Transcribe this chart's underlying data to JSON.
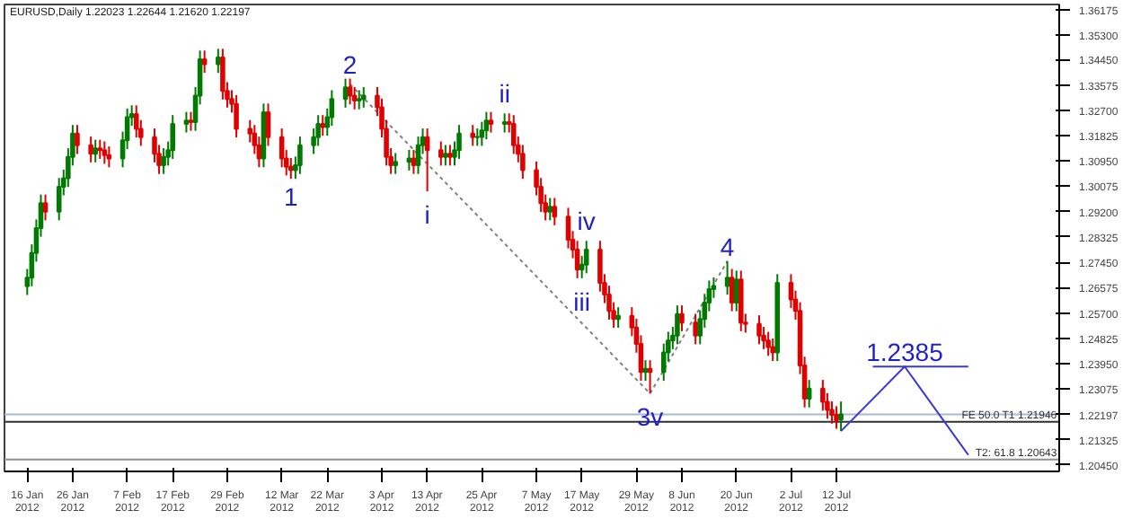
{
  "chart_data": {
    "type": "candlestick",
    "title": "EURUSD,Daily  1.22023 1.22644 1.21620 1.22197",
    "x": [
      "2012-01-16",
      "2012-01-17",
      "2012-01-18",
      "2012-01-19",
      "2012-01-20",
      "2012-01-23",
      "2012-01-24",
      "2012-01-25",
      "2012-01-26",
      "2012-01-27",
      "2012-01-30",
      "2012-01-31",
      "2012-02-01",
      "2012-02-02",
      "2012-02-03",
      "2012-02-06",
      "2012-02-07",
      "2012-02-08",
      "2012-02-09",
      "2012-02-10",
      "2012-02-13",
      "2012-02-14",
      "2012-02-15",
      "2012-02-16",
      "2012-02-17",
      "2012-02-20",
      "2012-02-21",
      "2012-02-22",
      "2012-02-23",
      "2012-02-24",
      "2012-02-27",
      "2012-02-28",
      "2012-02-29",
      "2012-03-01",
      "2012-03-02",
      "2012-03-05",
      "2012-03-06",
      "2012-03-07",
      "2012-03-08",
      "2012-03-09",
      "2012-03-12",
      "2012-03-13",
      "2012-03-14",
      "2012-03-15",
      "2012-03-16",
      "2012-03-19",
      "2012-03-20",
      "2012-03-21",
      "2012-03-22",
      "2012-03-23",
      "2012-03-26",
      "2012-03-27",
      "2012-03-28",
      "2012-03-29",
      "2012-03-30",
      "2012-04-02",
      "2012-04-03",
      "2012-04-04",
      "2012-04-05",
      "2012-04-06",
      "2012-04-09",
      "2012-04-10",
      "2012-04-11",
      "2012-04-12",
      "2012-04-13",
      "2012-04-16",
      "2012-04-17",
      "2012-04-18",
      "2012-04-19",
      "2012-04-20",
      "2012-04-23",
      "2012-04-24",
      "2012-04-25",
      "2012-04-26",
      "2012-04-27",
      "2012-04-30",
      "2012-05-01",
      "2012-05-02",
      "2012-05-03",
      "2012-05-04",
      "2012-05-07",
      "2012-05-08",
      "2012-05-09",
      "2012-05-10",
      "2012-05-11",
      "2012-05-14",
      "2012-05-15",
      "2012-05-16",
      "2012-05-17",
      "2012-05-18",
      "2012-05-21",
      "2012-05-22",
      "2012-05-23",
      "2012-05-24",
      "2012-05-25",
      "2012-05-28",
      "2012-05-29",
      "2012-05-30",
      "2012-05-31",
      "2012-06-01",
      "2012-06-04",
      "2012-06-05",
      "2012-06-06",
      "2012-06-07",
      "2012-06-08",
      "2012-06-11",
      "2012-06-12",
      "2012-06-13",
      "2012-06-14",
      "2012-06-15",
      "2012-06-18",
      "2012-06-19",
      "2012-06-20",
      "2012-06-21",
      "2012-06-22",
      "2012-06-25",
      "2012-06-26",
      "2012-06-27",
      "2012-06-28",
      "2012-06-29",
      "2012-07-02",
      "2012-07-03",
      "2012-07-04",
      "2012-07-05",
      "2012-07-06",
      "2012-07-09",
      "2012-07-10",
      "2012-07-11",
      "2012-07-12",
      "2012-07-13"
    ],
    "ohlc": [
      [
        1.2662,
        1.2722,
        1.2632,
        1.2692
      ],
      [
        1.2692,
        1.2807,
        1.2662,
        1.2777
      ],
      [
        1.2777,
        1.2893,
        1.2747,
        1.2863
      ],
      [
        1.2863,
        1.2979,
        1.2833,
        1.2949
      ],
      [
        1.2949,
        1.2979,
        1.289,
        1.292
      ],
      [
        1.292,
        1.3036,
        1.289,
        1.3006
      ],
      [
        1.3006,
        1.3065,
        1.2976,
        1.3035
      ],
      [
        1.3035,
        1.3139,
        1.3005,
        1.3109
      ],
      [
        1.3109,
        1.3219,
        1.3079,
        1.3189
      ],
      [
        1.3189,
        1.3219,
        1.3119,
        1.3149
      ],
      [
        1.3149,
        1.3179,
        1.309,
        1.312
      ],
      [
        1.312,
        1.3168,
        1.309,
        1.3138
      ],
      [
        1.3138,
        1.3168,
        1.3102,
        1.3132
      ],
      [
        1.3132,
        1.3162,
        1.3085,
        1.3115
      ],
      [
        1.3115,
        1.3145,
        1.3073,
        1.3103
      ],
      [
        1.3103,
        1.3196,
        1.3073,
        1.3166
      ],
      [
        1.3166,
        1.3276,
        1.3136,
        1.3246
      ],
      [
        1.3246,
        1.3287,
        1.3216,
        1.3257
      ],
      [
        1.3257,
        1.3287,
        1.3176,
        1.3206
      ],
      [
        1.3206,
        1.3236,
        1.3147,
        1.3177
      ],
      [
        1.3177,
        1.3207,
        1.309,
        1.312
      ],
      [
        1.312,
        1.315,
        1.305,
        1.308
      ],
      [
        1.308,
        1.3139,
        1.305,
        1.3109
      ],
      [
        1.3109,
        1.3162,
        1.3079,
        1.3132
      ],
      [
        1.3132,
        1.3253,
        1.3102,
        1.3223
      ],
      [
        1.3223,
        1.3264,
        1.3193,
        1.3234
      ],
      [
        1.3234,
        1.3264,
        1.3199,
        1.3229
      ],
      [
        1.3229,
        1.335,
        1.3199,
        1.332
      ],
      [
        1.332,
        1.3476,
        1.329,
        1.3446
      ],
      [
        1.3446,
        1.3476,
        1.3399,
        1.3429
      ],
      [
        1.3429,
        1.3482,
        1.3399,
        1.3452
      ],
      [
        1.3452,
        1.3482,
        1.3307,
        1.3337
      ],
      [
        1.3337,
        1.3367,
        1.3279,
        1.3309
      ],
      [
        1.3309,
        1.3339,
        1.3262,
        1.3292
      ],
      [
        1.3292,
        1.3322,
        1.3176,
        1.3206
      ],
      [
        1.3206,
        1.3236,
        1.3159,
        1.3189
      ],
      [
        1.3189,
        1.3219,
        1.3119,
        1.3149
      ],
      [
        1.3149,
        1.3179,
        1.3073,
        1.3103
      ],
      [
        1.3103,
        1.3293,
        1.3073,
        1.3263
      ],
      [
        1.3263,
        1.3293,
        1.3147,
        1.3177
      ],
      [
        1.3177,
        1.3207,
        1.3073,
        1.3103
      ],
      [
        1.3103,
        1.3133,
        1.3045,
        1.3075
      ],
      [
        1.3075,
        1.3105,
        1.3033,
        1.3063
      ],
      [
        1.3063,
        1.311,
        1.3033,
        1.308
      ],
      [
        1.308,
        1.3179,
        1.305,
        1.3149
      ],
      [
        1.3149,
        1.3207,
        1.3119,
        1.3177
      ],
      [
        1.3177,
        1.3253,
        1.3147,
        1.3223
      ],
      [
        1.3223,
        1.3253,
        1.3182,
        1.3212
      ],
      [
        1.3212,
        1.3276,
        1.3182,
        1.3246
      ],
      [
        1.3246,
        1.3339,
        1.3216,
        1.3309
      ],
      [
        1.3309,
        1.3379,
        1.3279,
        1.3349
      ],
      [
        1.3349,
        1.3379,
        1.329,
        1.332
      ],
      [
        1.332,
        1.335,
        1.3273,
        1.3303
      ],
      [
        1.3303,
        1.3339,
        1.3273,
        1.3309
      ],
      [
        1.3309,
        1.335,
        1.3279,
        1.332
      ],
      [
        1.332,
        1.335,
        1.325,
        1.328
      ],
      [
        1.328,
        1.331,
        1.3176,
        1.3206
      ],
      [
        1.3206,
        1.3236,
        1.3079,
        1.3109
      ],
      [
        1.3109,
        1.3139,
        1.305,
        1.308
      ],
      [
        1.308,
        1.3122,
        1.305,
        1.3092
      ],
      [
        1.3092,
        1.3133,
        1.3062,
        1.3103
      ],
      [
        1.3103,
        1.3133,
        1.305,
        1.308
      ],
      [
        1.308,
        1.3179,
        1.305,
        1.3149
      ],
      [
        1.3149,
        1.3207,
        1.3119,
        1.3177
      ],
      [
        1.3177,
        1.3207,
        1.299,
        1.3132
      ],
      [
        1.3132,
        1.3162,
        1.3079,
        1.3109
      ],
      [
        1.3109,
        1.315,
        1.3079,
        1.312
      ],
      [
        1.312,
        1.315,
        1.3079,
        1.3109
      ],
      [
        1.3109,
        1.3162,
        1.3079,
        1.3132
      ],
      [
        1.3132,
        1.3219,
        1.3102,
        1.3189
      ],
      [
        1.3189,
        1.3219,
        1.3147,
        1.3177
      ],
      [
        1.3177,
        1.3207,
        1.3147,
        1.3178
      ],
      [
        1.3178,
        1.323,
        1.3147,
        1.32
      ],
      [
        1.32,
        1.3264,
        1.317,
        1.3234
      ],
      [
        1.3234,
        1.3264,
        1.3193,
        1.3223
      ],
      [
        1.3223,
        1.3259,
        1.3193,
        1.3229
      ],
      [
        1.3229,
        1.3259,
        1.3193,
        1.3223
      ],
      [
        1.3223,
        1.3253,
        1.3119,
        1.3149
      ],
      [
        1.3149,
        1.3179,
        1.309,
        1.312
      ],
      [
        1.312,
        1.315,
        1.3033,
        1.3063
      ],
      [
        1.3063,
        1.3093,
        1.2976,
        1.3006
      ],
      [
        1.3006,
        1.3036,
        1.2919,
        1.2949
      ],
      [
        1.2949,
        1.2979,
        1.289,
        1.292
      ],
      [
        1.292,
        1.2967,
        1.289,
        1.2937
      ],
      [
        1.2937,
        1.2967,
        1.2873,
        1.2903
      ],
      [
        1.2903,
        1.2933,
        1.2793,
        1.2823
      ],
      [
        1.2823,
        1.2853,
        1.2759,
        1.2789
      ],
      [
        1.2789,
        1.2819,
        1.269,
        1.272
      ],
      [
        1.272,
        1.2767,
        1.269,
        1.2737
      ],
      [
        1.2737,
        1.2819,
        1.2707,
        1.2789
      ],
      [
        1.2789,
        1.2819,
        1.2644,
        1.2674
      ],
      [
        1.2674,
        1.2704,
        1.2604,
        1.2634
      ],
      [
        1.2634,
        1.2664,
        1.2547,
        1.2577
      ],
      [
        1.2577,
        1.2607,
        1.2519,
        1.2549
      ],
      [
        1.2549,
        1.259,
        1.2519,
        1.256
      ],
      [
        1.256,
        1.259,
        1.249,
        1.252
      ],
      [
        1.252,
        1.255,
        1.2433,
        1.2463
      ],
      [
        1.2463,
        1.2493,
        1.2336,
        1.2366
      ],
      [
        1.2366,
        1.2407,
        1.2336,
        1.2377
      ],
      [
        1.2377,
        1.2407,
        1.2292,
        1.2366
      ],
      [
        1.2366,
        1.2464,
        1.2336,
        1.2434
      ],
      [
        1.2434,
        1.2505,
        1.2404,
        1.2475
      ],
      [
        1.2475,
        1.2522,
        1.2445,
        1.2492
      ],
      [
        1.2492,
        1.2596,
        1.2462,
        1.2566
      ],
      [
        1.2566,
        1.2596,
        1.2507,
        1.2537
      ],
      [
        1.2537,
        1.2567,
        1.2462,
        1.2492
      ],
      [
        1.2492,
        1.2579,
        1.2462,
        1.2549
      ],
      [
        1.2549,
        1.2636,
        1.2519,
        1.2606
      ],
      [
        1.2606,
        1.2682,
        1.2576,
        1.2652
      ],
      [
        1.2652,
        1.2693,
        1.2622,
        1.2663
      ],
      [
        1.2663,
        1.2749,
        1.2633,
        1.2692
      ],
      [
        1.2692,
        1.2722,
        1.2576,
        1.2606
      ],
      [
        1.2606,
        1.2716,
        1.2576,
        1.2686
      ],
      [
        1.2686,
        1.2716,
        1.2507,
        1.2537
      ],
      [
        1.2537,
        1.2567,
        1.2502,
        1.2532
      ],
      [
        1.2532,
        1.2562,
        1.2462,
        1.2492
      ],
      [
        1.2492,
        1.2522,
        1.2445,
        1.2475
      ],
      [
        1.2475,
        1.2505,
        1.2422,
        1.2452
      ],
      [
        1.2452,
        1.2482,
        1.2404,
        1.2434
      ],
      [
        1.2434,
        1.2704,
        1.2404,
        1.2674
      ],
      [
        1.2674,
        1.2704,
        1.2587,
        1.2617
      ],
      [
        1.2617,
        1.2647,
        1.2547,
        1.2577
      ],
      [
        1.2577,
        1.2607,
        1.2359,
        1.2389
      ],
      [
        1.2389,
        1.2419,
        1.2244,
        1.2274
      ],
      [
        1.2274,
        1.2339,
        1.2244,
        1.2309
      ],
      [
        1.2309,
        1.2339,
        1.2233,
        1.2263
      ],
      [
        1.2263,
        1.2293,
        1.2205,
        1.2235
      ],
      [
        1.2235,
        1.2265,
        1.2188,
        1.2218
      ],
      [
        1.2218,
        1.2248,
        1.217,
        1.22
      ],
      [
        1.22023,
        1.22644,
        1.2162,
        1.22197
      ]
    ],
    "colors": [
      "#007a00",
      "#007a00",
      "#007a00",
      "#007a00",
      "#e00000",
      "#007a00",
      "#007a00",
      "#007a00",
      "#007a00",
      "#e00000",
      "#e00000",
      "#007a00",
      "#e00000",
      "#e00000",
      "#e00000",
      "#007a00",
      "#007a00",
      "#007a00",
      "#e00000",
      "#e00000",
      "#e00000",
      "#e00000",
      "#007a00",
      "#007a00",
      "#007a00",
      "#007a00",
      "#e00000",
      "#007a00",
      "#007a00",
      "#e00000",
      "#007a00",
      "#e00000",
      "#e00000",
      "#e00000",
      "#e00000",
      "#e00000",
      "#e00000",
      "#e00000",
      "#007a00",
      "#e00000",
      "#e00000",
      "#e00000",
      "#e00000",
      "#007a00",
      "#007a00",
      "#007a00",
      "#007a00",
      "#e00000",
      "#007a00",
      "#007a00",
      "#007a00",
      "#e00000",
      "#e00000",
      "#007a00",
      "#007a00",
      "#e00000",
      "#e00000",
      "#e00000",
      "#e00000",
      "#007a00",
      "#007a00",
      "#e00000",
      "#007a00",
      "#007a00",
      "#e00000",
      "#e00000",
      "#007a00",
      "#e00000",
      "#007a00",
      "#007a00",
      "#e00000",
      "#007a00",
      "#007a00",
      "#007a00",
      "#e00000",
      "#007a00",
      "#e00000",
      "#e00000",
      "#e00000",
      "#e00000",
      "#e00000",
      "#e00000",
      "#e00000",
      "#007a00",
      "#e00000",
      "#e00000",
      "#e00000",
      "#e00000",
      "#007a00",
      "#007a00",
      "#e00000",
      "#e00000",
      "#e00000",
      "#e00000",
      "#007a00",
      "#e00000",
      "#e00000",
      "#e00000",
      "#007a00",
      "#e00000",
      "#007a00",
      "#007a00",
      "#007a00",
      "#007a00",
      "#e00000",
      "#e00000",
      "#007a00",
      "#007a00",
      "#007a00",
      "#007a00",
      "#007a00",
      "#e00000",
      "#007a00",
      "#e00000",
      "#e00000",
      "#e00000",
      "#e00000",
      "#e00000",
      "#e00000",
      "#007a00",
      "#e00000",
      "#e00000",
      "#e00000",
      "#e00000",
      "#007a00",
      "#e00000",
      "#e00000",
      "#e00000",
      "#e00000",
      "#007a00"
    ],
    "series": [
      {
        "type": "line",
        "color": "#808080",
        "line_style": "dotted",
        "x": [
          "2012-03-27",
          "2012-06-01",
          "2012-06-18"
        ],
        "values": [
          1.336,
          1.2292,
          1.2749
        ]
      },
      {
        "type": "line",
        "color": "#3a3ad6",
        "line_style": "solid",
        "x": [
          "2012-07-13",
          "2012-07-27",
          "2012-08-10"
        ],
        "values": [
          1.2162,
          1.2385,
          1.208
        ]
      },
      {
        "type": "line",
        "color": "#3a3ad6",
        "line_style": "solid",
        "x": [
          "2012-07-20",
          "2012-08-10"
        ],
        "values": [
          1.2385,
          1.2385
        ]
      }
    ],
    "annotations": [
      {
        "text": "1",
        "x": "2012-03-14",
        "y": 1.3033
      },
      {
        "text": "2",
        "x": "2012-03-27",
        "y": 1.3379
      },
      {
        "text": "i",
        "x": "2012-04-13",
        "y": 1.299
      },
      {
        "text": "ii",
        "x": "2012-04-30",
        "y": 1.3259
      },
      {
        "text": "iii",
        "x": "2012-05-17",
        "y": 1.269
      },
      {
        "text": "iv",
        "x": "2012-05-18",
        "y": 1.2819
      },
      {
        "text": "3v",
        "x": "2012-06-01",
        "y": 1.2292
      },
      {
        "text": "4",
        "x": "2012-06-18",
        "y": 1.2749
      },
      {
        "text": "1.2385",
        "x": "2012-07-27",
        "y": 1.2385
      }
    ],
    "xlim": [
      "2012-01-11",
      "2012-08-30"
    ],
    "xticks": [
      {
        "value": "2012-01-16",
        "label": "16 Jan 2012"
      },
      {
        "value": "2012-01-26",
        "label": "26 Jan 2012"
      },
      {
        "value": "2012-02-07",
        "label": "7 Feb 2012"
      },
      {
        "value": "2012-02-17",
        "label": "17 Feb 2012"
      },
      {
        "value": "2012-02-29",
        "label": "29 Feb 2012"
      },
      {
        "value": "2012-03-12",
        "label": "12 Mar 2012"
      },
      {
        "value": "2012-03-22",
        "label": "22 Mar 2012"
      },
      {
        "value": "2012-04-03",
        "label": "3 Apr 2012"
      },
      {
        "value": "2012-04-13",
        "label": "13 Apr 2012"
      },
      {
        "value": "2012-04-25",
        "label": "25 Apr 2012"
      },
      {
        "value": "2012-05-07",
        "label": "7 May 2012"
      },
      {
        "value": "2012-05-17",
        "label": "17 May 2012"
      },
      {
        "value": "2012-05-29",
        "label": "29 May 2012"
      },
      {
        "value": "2012-06-08",
        "label": "8 Jun 2012"
      },
      {
        "value": "2012-06-20",
        "label": "20 Jun 2012"
      },
      {
        "value": "2012-07-02",
        "label": "2 Jul 2012"
      },
      {
        "value": "2012-07-12",
        "label": "12 Jul 2012"
      }
    ],
    "ylim": [
      1.2023,
      1.3635
    ],
    "yticks": [
      {
        "value": 1.36175,
        "label": "1.36175"
      },
      {
        "value": 1.353,
        "label": "1.35300"
      },
      {
        "value": 1.3445,
        "label": "1.34450"
      },
      {
        "value": 1.33575,
        "label": "1.33575"
      },
      {
        "value": 1.327,
        "label": "1.32700"
      },
      {
        "value": 1.31825,
        "label": "1.31825"
      },
      {
        "value": 1.3095,
        "label": "1.30950"
      },
      {
        "value": 1.30075,
        "label": "1.30075"
      },
      {
        "value": 1.292,
        "label": "1.29200"
      },
      {
        "value": 1.28325,
        "label": "1.28325"
      },
      {
        "value": 1.2745,
        "label": "1.27450"
      },
      {
        "value": 1.26575,
        "label": "1.26575"
      },
      {
        "value": 1.257,
        "label": "1.25700"
      },
      {
        "value": 1.24825,
        "label": "1.24825"
      },
      {
        "value": 1.2395,
        "label": "1.23950"
      },
      {
        "value": 1.23075,
        "label": "1.23075"
      },
      {
        "value": 1.22197,
        "label": "1.22197"
      },
      {
        "value": 1.21325,
        "label": "1.21325"
      },
      {
        "value": 1.2045,
        "label": "1.20450"
      }
    ],
    "ref_lines": [
      {
        "axis": "y",
        "value": 1.22197,
        "label": null,
        "color": "#a9b8d6"
      },
      {
        "axis": "y",
        "value": 1.21946,
        "label": "FE 50.0 T1 1.21946",
        "color": "#303030"
      },
      {
        "axis": "y",
        "value": 1.20643,
        "label": "T2: 61.8 1.20643",
        "color": "#909090"
      }
    ],
    "grid": false
  }
}
